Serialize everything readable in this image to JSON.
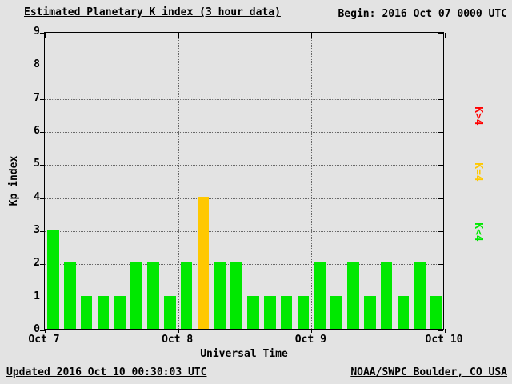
{
  "colors": {
    "background": "#e3e3e3",
    "bar_green": "#00e800",
    "bar_yellow": "#ffc800",
    "legend_red": "#ff0000",
    "text": "#000000"
  },
  "header": {
    "title": "Estimated Planetary K index (3 hour data)",
    "begin_label": "Begin:",
    "begin_value": "2016 Oct 07 0000 UTC"
  },
  "footer": {
    "updated": "Updated 2016 Oct 10 00:30:03 UTC",
    "source": "NOAA/SWPC Boulder, CO USA"
  },
  "chart_data": {
    "type": "bar",
    "title": "Estimated Planetary K index (3 hour data)",
    "xlabel": "Universal Time",
    "ylabel": "Kp index",
    "ylim": [
      0,
      9
    ],
    "yticks": [
      0,
      1,
      2,
      3,
      4,
      5,
      6,
      7,
      8,
      9
    ],
    "xticks": [
      "Oct 7",
      "Oct 8",
      "Oct 9",
      "Oct 10"
    ],
    "bar_interval_hours": 3,
    "values": [
      3,
      2,
      1,
      1,
      1,
      2,
      2,
      1,
      2,
      4,
      2,
      2,
      1,
      1,
      1,
      1,
      2,
      1,
      2,
      1,
      2,
      1,
      2,
      1
    ],
    "color_rule": "green if Kp<4, yellow if Kp=4, red if Kp>4",
    "grid": true,
    "legend_position": "right",
    "legend": [
      {
        "label": "K>4",
        "color": "#ff0000"
      },
      {
        "label": "K=4",
        "color": "#ffc800"
      },
      {
        "label": "K<4",
        "color": "#00e800"
      }
    ]
  }
}
